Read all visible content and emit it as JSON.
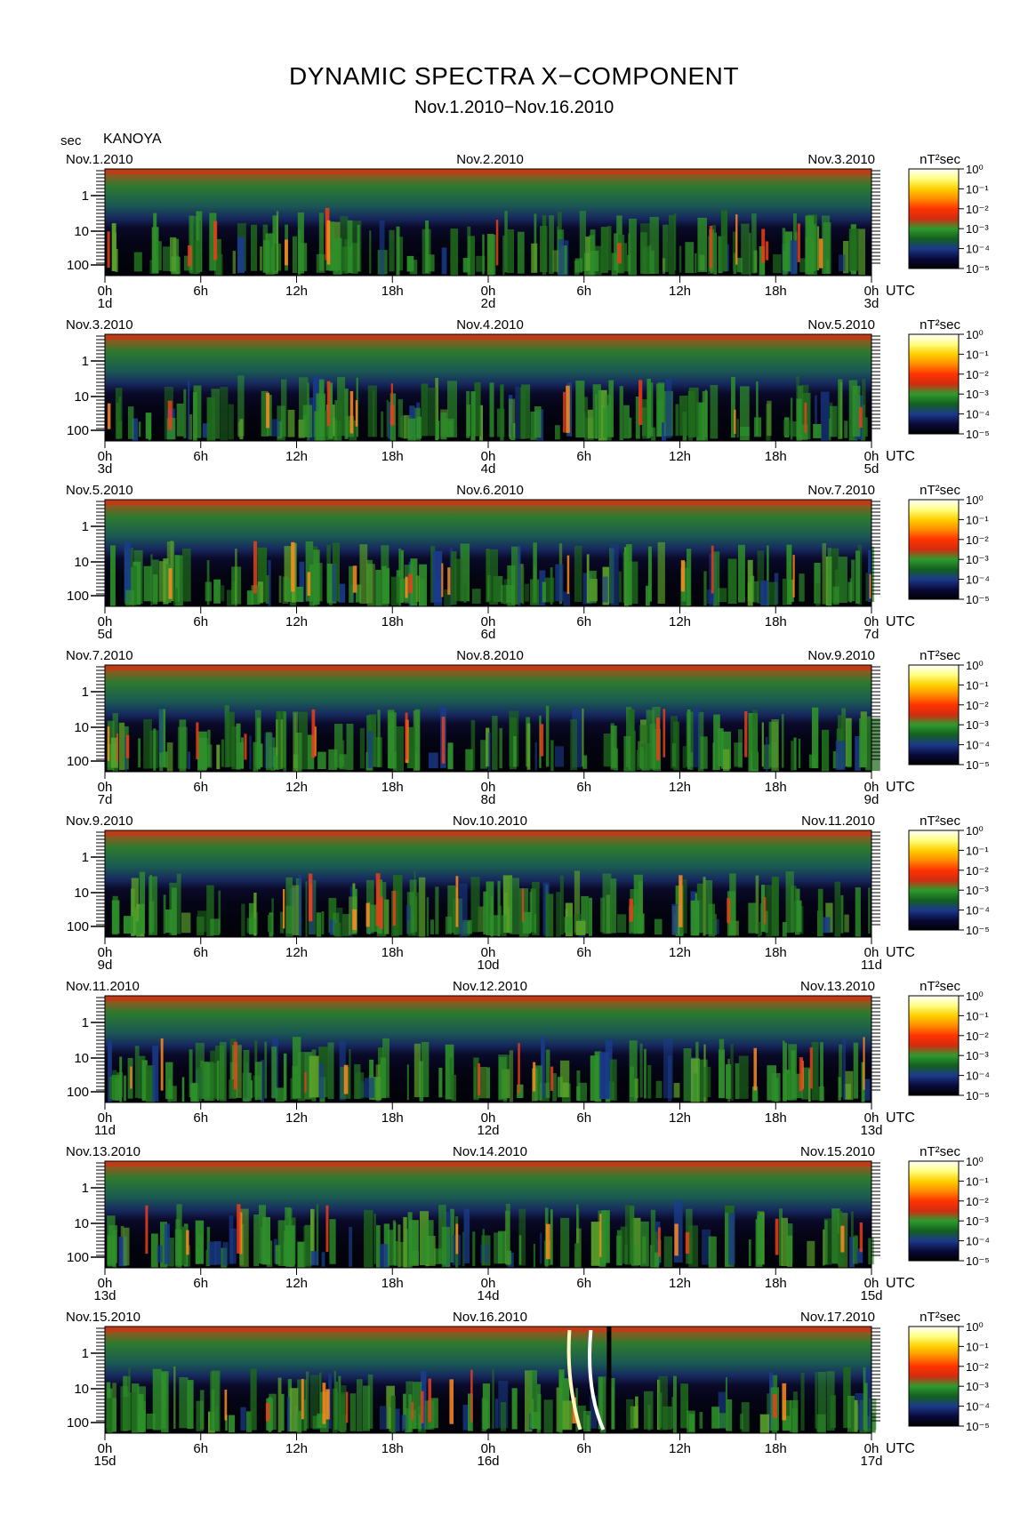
{
  "title": "DYNAMIC SPECTRA X−COMPONENT",
  "subtitle": "Nov.1.2010−Nov.16.2010",
  "y_unit": "sec",
  "station": "KANOYA",
  "power_unit": "nT²sec",
  "utc_label": "UTC",
  "chart_data": {
    "type": "heatmap",
    "title": "DYNAMIC SPECTRA X−COMPONENT",
    "subtitle": "Nov.1.2010−Nov.16.2010",
    "station": "KANOYA",
    "xlabel": "UTC",
    "ylabel": "sec",
    "y_scale": "log",
    "y_ticks": [
      "1",
      "10",
      "100"
    ],
    "x_tick_labels": [
      "0h",
      "6h",
      "12h",
      "18h",
      "0h",
      "6h",
      "12h",
      "18h",
      "0h"
    ],
    "colorbar": {
      "unit": "nT²sec",
      "scale": "log",
      "tick_labels": [
        "10⁰",
        "10⁻¹",
        "10⁻²",
        "10⁻³",
        "10⁻⁴",
        "10⁻⁵"
      ],
      "colors": [
        "#000000",
        "#0a0a3c",
        "#1c3a8a",
        "#13601e",
        "#2f9a2f",
        "#d22c10",
        "#ff3300",
        "#ff8c00",
        "#ffd000",
        "#ffff80",
        "#ffffff"
      ]
    },
    "panels": [
      {
        "date_left": "Nov.1.2010",
        "date_mid": "Nov.2.2010",
        "date_right": "Nov.3.2010",
        "day_left": "1d",
        "day_mid": "2d",
        "day_right": "3d"
      },
      {
        "date_left": "Nov.3.2010",
        "date_mid": "Nov.4.2010",
        "date_right": "Nov.5.2010",
        "day_left": "3d",
        "day_mid": "4d",
        "day_right": "5d"
      },
      {
        "date_left": "Nov.5.2010",
        "date_mid": "Nov.6.2010",
        "date_right": "Nov.7.2010",
        "day_left": "5d",
        "day_mid": "6d",
        "day_right": "7d"
      },
      {
        "date_left": "Nov.7.2010",
        "date_mid": "Nov.8.2010",
        "date_right": "Nov.9.2010",
        "day_left": "7d",
        "day_mid": "8d",
        "day_right": "9d"
      },
      {
        "date_left": "Nov.9.2010",
        "date_mid": "Nov.10.2010",
        "date_right": "Nov.11.2010",
        "day_left": "9d",
        "day_mid": "10d",
        "day_right": "11d"
      },
      {
        "date_left": "Nov.11.2010",
        "date_mid": "Nov.12.2010",
        "date_right": "Nov.13.2010",
        "day_left": "11d",
        "day_mid": "12d",
        "day_right": "13d"
      },
      {
        "date_left": "Nov.13.2010",
        "date_mid": "Nov.14.2010",
        "date_right": "Nov.15.2010",
        "day_left": "13d",
        "day_mid": "14d",
        "day_right": "15d"
      },
      {
        "date_left": "Nov.15.2010",
        "date_mid": "Nov.16.2010",
        "date_right": "Nov.17.2010",
        "day_left": "15d",
        "day_mid": "16d",
        "day_right": "17d"
      }
    ]
  }
}
